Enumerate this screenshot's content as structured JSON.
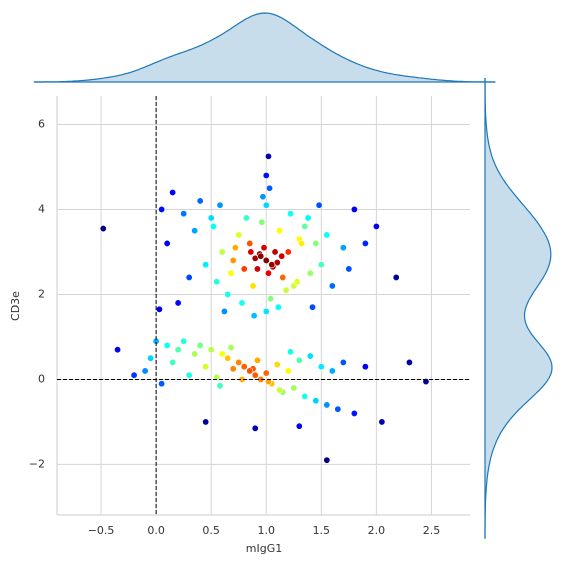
{
  "chart_data": {
    "type": "scatter",
    "xlabel": "mIgG1",
    "ylabel": "CD3e",
    "colormap": "jet",
    "marginal": "kde",
    "marginal_color": "#1f77b4",
    "grid": true,
    "reference_lines": {
      "x": 0,
      "y": 0
    },
    "xlim": [
      -0.9,
      2.85
    ],
    "ylim": [
      -3.19,
      6.67
    ],
    "xticks": [
      {
        "value": -0.5,
        "label": "−0.5"
      },
      {
        "value": 0,
        "label": "0.0"
      },
      0.5,
      {
        "value": 1,
        "label": "1.0"
      },
      1.5,
      {
        "value": 2,
        "label": "2.0"
      },
      2.5
    ],
    "yticks": [
      {
        "value": -2,
        "label": "−2"
      },
      0,
      2,
      4,
      6
    ],
    "x": [
      1.0,
      0.95,
      1.05,
      0.98,
      1.02,
      0.9,
      1.1,
      0.85,
      1.15,
      0.8,
      1.2,
      0.75,
      1.25,
      0.7,
      1.3,
      0.65,
      1.35,
      0.6,
      1.4,
      0.55,
      1.45,
      0.5,
      1.5,
      0.92,
      1.08,
      0.88,
      1.12,
      0.96,
      1.04,
      0.82,
      1.18,
      0.78,
      1.22,
      0.72,
      1.28,
      0.68,
      1.32,
      1.0,
      1.0,
      0.94,
      1.06,
      0.86,
      1.14,
      0.45,
      1.55,
      0.4,
      1.6,
      0.35,
      1.7,
      0.3,
      1.8,
      0.25,
      0.2,
      1.9,
      0.15,
      0.1,
      2.0,
      1.0,
      0.62,
      1.38,
      0.58,
      1.42,
      0.97,
      1.03,
      0.89,
      1.11,
      0.52,
      1.48,
      1.75,
      0.05,
      0.85,
      0.8,
      0.9,
      0.75,
      0.95,
      0.7,
      1.0,
      0.65,
      1.05,
      0.6,
      1.1,
      0.55,
      1.15,
      0.5,
      1.2,
      0.45,
      1.25,
      0.4,
      1.3,
      0.35,
      1.35,
      0.3,
      1.4,
      0.25,
      1.45,
      0.2,
      1.5,
      0.15,
      1.55,
      0.1,
      1.6,
      0.05,
      1.65,
      0.0,
      1.7,
      -0.05,
      1.8,
      -0.1,
      1.9,
      -0.2,
      0.88,
      0.78,
      0.92,
      1.02,
      0.68,
      1.12,
      0.58,
      1.22,
      2.3,
      -0.35,
      -0.48,
      1.55,
      2.45,
      2.05,
      0.03,
      1.02,
      2.18,
      0.9,
      0.45,
      1.3
    ],
    "y": [
      2.8,
      2.9,
      2.7,
      3.1,
      2.5,
      2.85,
      2.75,
      3.2,
      2.4,
      2.6,
      3.0,
      3.4,
      2.2,
      2.8,
      3.3,
      2.0,
      3.6,
      3.0,
      2.5,
      2.3,
      3.2,
      3.8,
      2.7,
      2.6,
      3.0,
      2.2,
      3.5,
      3.7,
      1.9,
      3.8,
      2.1,
      1.8,
      3.9,
      3.1,
      2.3,
      2.5,
      3.2,
      4.1,
      1.6,
      2.95,
      2.65,
      3.0,
      2.9,
      2.7,
      3.4,
      4.2,
      2.2,
      3.5,
      3.1,
      2.4,
      4.0,
      3.9,
      1.8,
      3.2,
      4.4,
      3.2,
      3.6,
      4.8,
      1.6,
      3.8,
      4.1,
      1.7,
      4.3,
      4.5,
      1.5,
      1.7,
      3.6,
      4.1,
      2.6,
      4.0,
      0.2,
      0.3,
      0.1,
      0.4,
      0.0,
      0.25,
      0.15,
      0.5,
      -0.1,
      0.6,
      0.35,
      0.05,
      -0.3,
      0.7,
      0.2,
      0.3,
      -0.2,
      0.8,
      0.45,
      0.6,
      -0.4,
      0.1,
      0.55,
      0.9,
      -0.5,
      0.7,
      0.3,
      0.4,
      -0.6,
      0.8,
      0.2,
      -0.1,
      -0.7,
      0.9,
      0.4,
      0.5,
      -0.8,
      0.2,
      0.3,
      0.1,
      0.25,
      0.0,
      0.45,
      -0.05,
      0.75,
      -0.25,
      -0.15,
      0.65,
      0.4,
      0.7,
      3.55,
      -1.9,
      -0.05,
      -1.0,
      1.65,
      5.25,
      2.4,
      -1.15,
      -1.0,
      -1.1
    ]
  }
}
